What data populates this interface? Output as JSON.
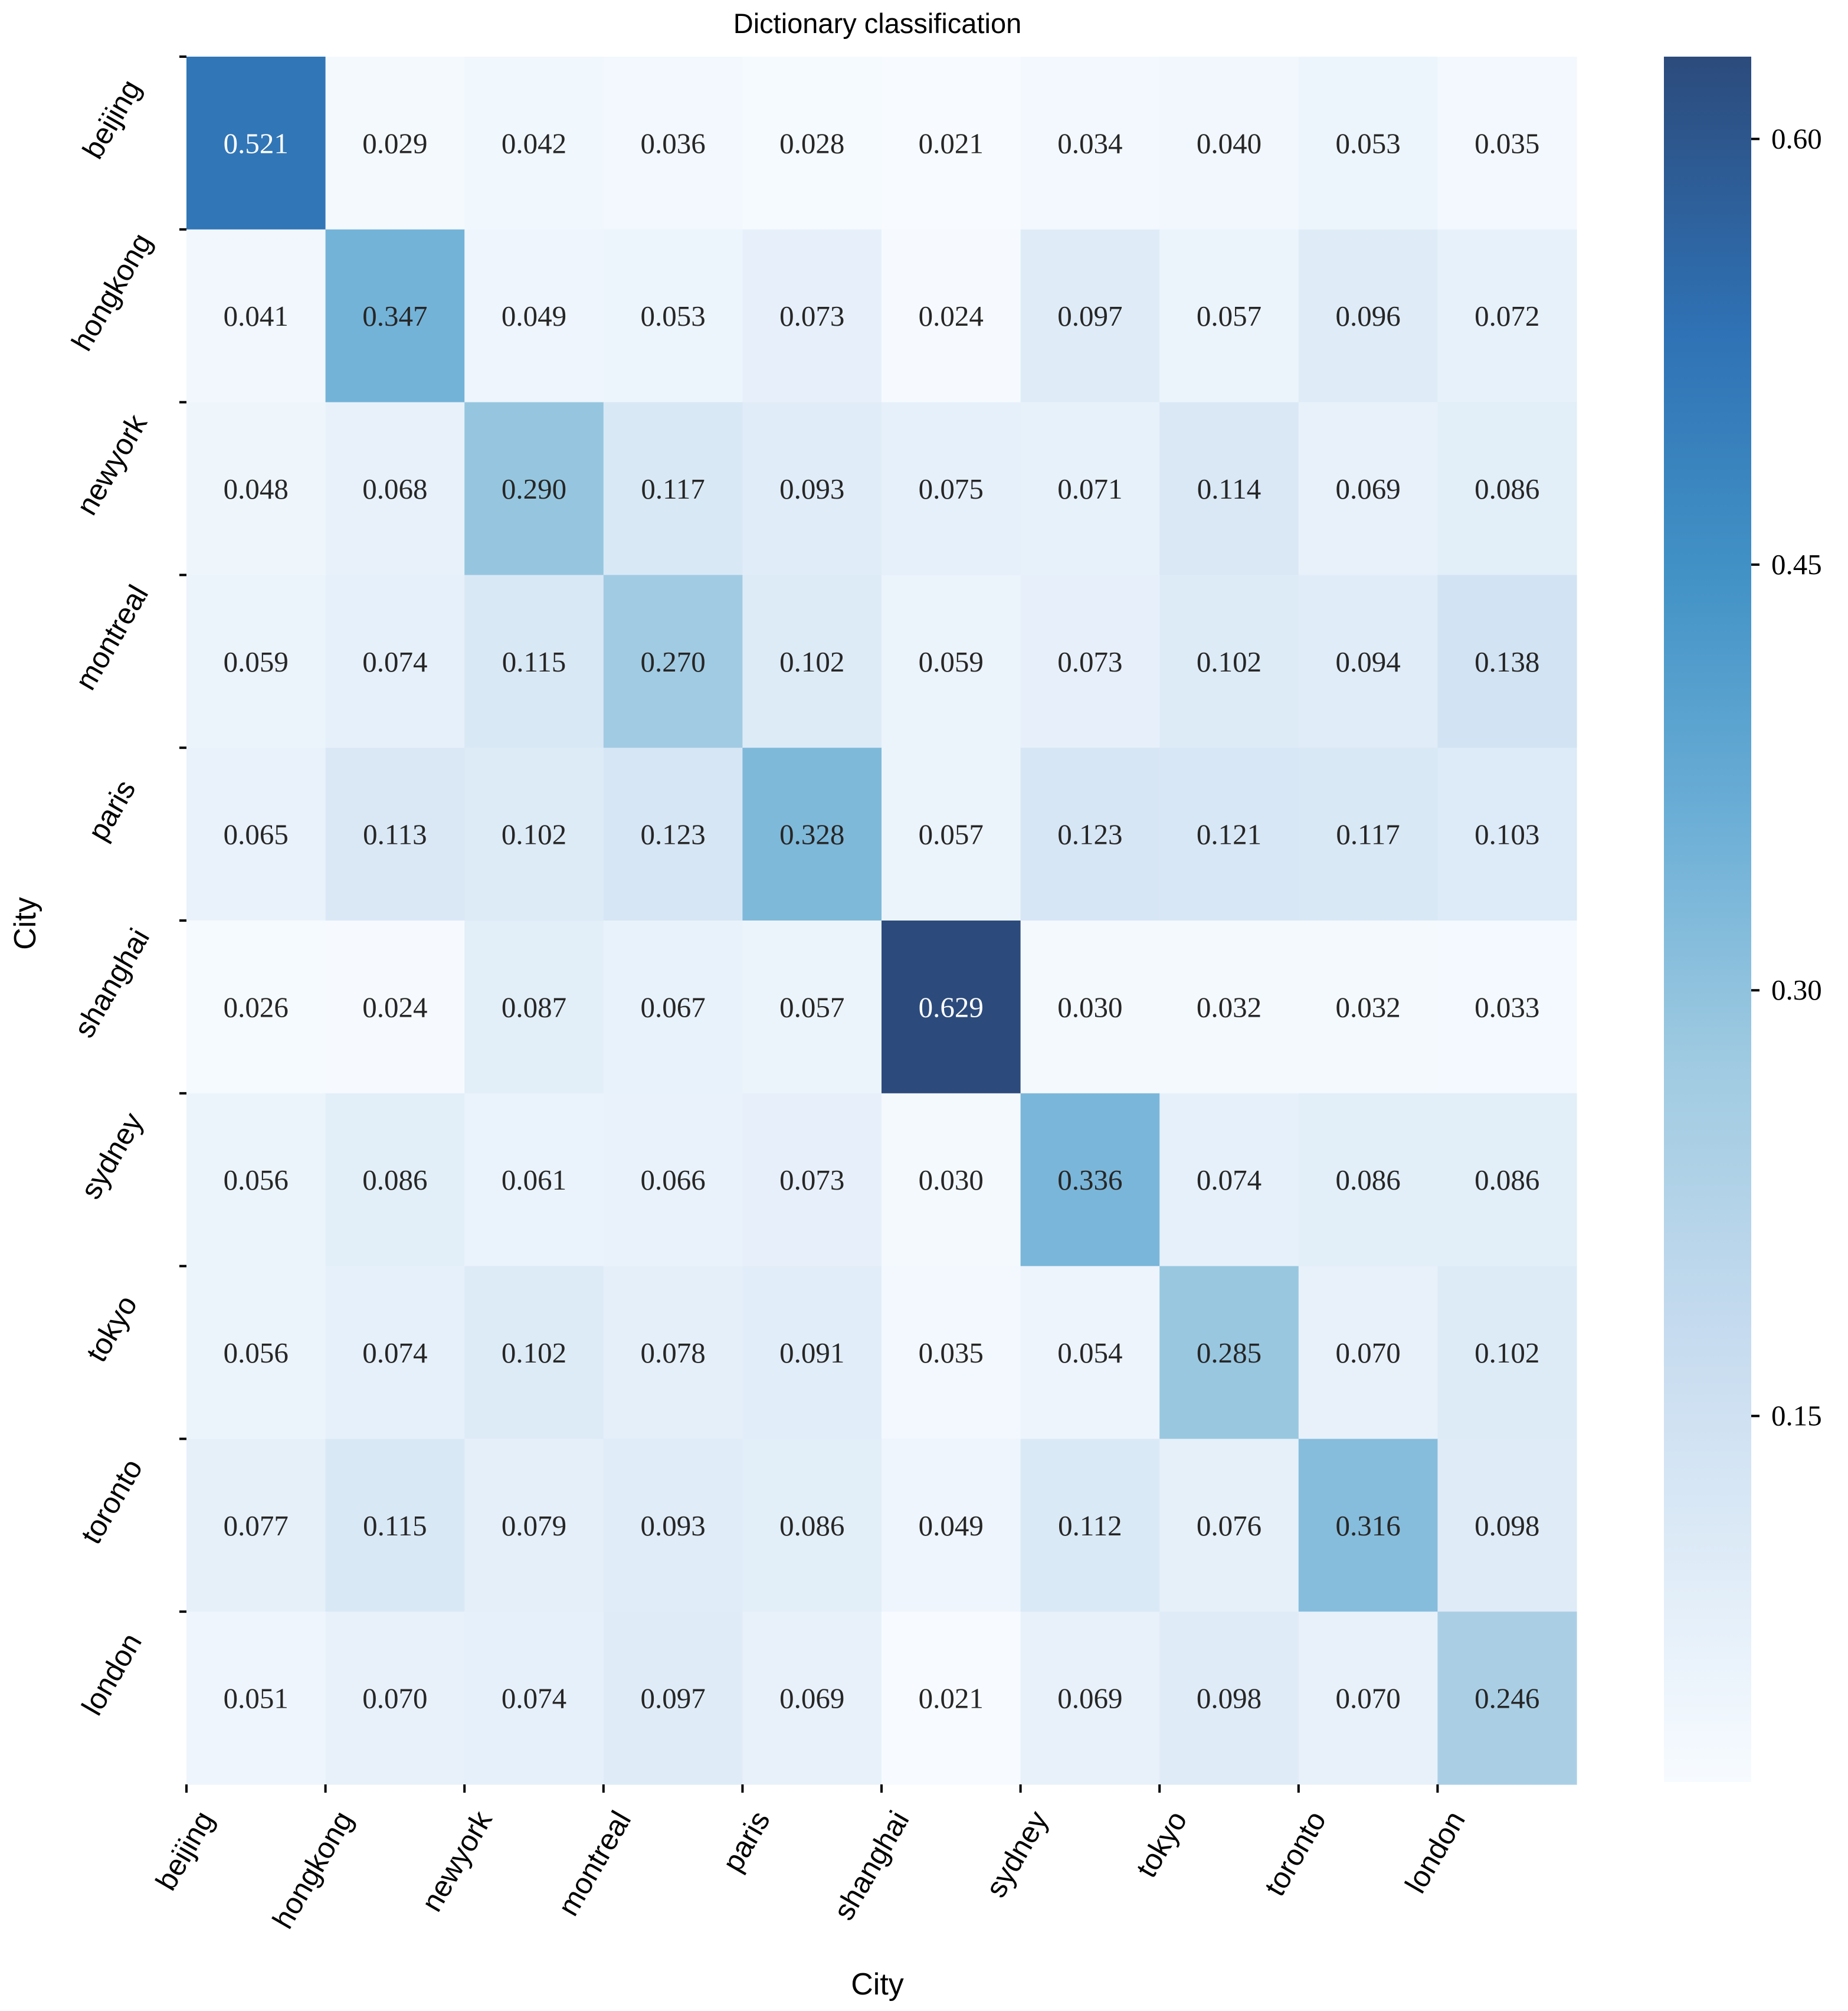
{
  "chart_data": {
    "type": "heatmap",
    "title": "Dictionary classification",
    "xlabel": "City",
    "ylabel": "City",
    "x_categories": [
      "beijing",
      "hongkong",
      "newyork",
      "montreal",
      "paris",
      "shanghai",
      "sydney",
      "tokyo",
      "toronto",
      "london"
    ],
    "y_categories": [
      "beijing",
      "hongkong",
      "newyork",
      "montreal",
      "paris",
      "shanghai",
      "sydney",
      "tokyo",
      "toronto",
      "london"
    ],
    "values": [
      [
        0.521,
        0.029,
        0.042,
        0.036,
        0.028,
        0.021,
        0.034,
        0.04,
        0.053,
        0.035
      ],
      [
        0.041,
        0.347,
        0.049,
        0.053,
        0.073,
        0.024,
        0.097,
        0.057,
        0.096,
        0.072
      ],
      [
        0.048,
        0.068,
        0.29,
        0.117,
        0.093,
        0.075,
        0.071,
        0.114,
        0.069,
        0.086
      ],
      [
        0.059,
        0.074,
        0.115,
        0.27,
        0.102,
        0.059,
        0.073,
        0.102,
        0.094,
        0.138
      ],
      [
        0.065,
        0.113,
        0.102,
        0.123,
        0.328,
        0.057,
        0.123,
        0.121,
        0.117,
        0.103
      ],
      [
        0.026,
        0.024,
        0.087,
        0.067,
        0.057,
        0.629,
        0.03,
        0.032,
        0.032,
        0.033
      ],
      [
        0.056,
        0.086,
        0.061,
        0.066,
        0.073,
        0.03,
        0.336,
        0.074,
        0.086,
        0.086
      ],
      [
        0.056,
        0.074,
        0.102,
        0.078,
        0.091,
        0.035,
        0.054,
        0.285,
        0.07,
        0.102
      ],
      [
        0.077,
        0.115,
        0.079,
        0.093,
        0.086,
        0.049,
        0.112,
        0.076,
        0.316,
        0.098
      ],
      [
        0.051,
        0.07,
        0.074,
        0.097,
        0.069,
        0.021,
        0.069,
        0.098,
        0.07,
        0.246
      ]
    ],
    "value_labels": [
      [
        "0.521",
        "0.029",
        "0.042",
        "0.036",
        "0.028",
        "0.021",
        "0.034",
        "0.040",
        "0.053",
        "0.035"
      ],
      [
        "0.041",
        "0.347",
        "0.049",
        "0.053",
        "0.073",
        "0.024",
        "0.097",
        "0.057",
        "0.096",
        "0.072"
      ],
      [
        "0.048",
        "0.068",
        "0.290",
        "0.117",
        "0.093",
        "0.075",
        "0.071",
        "0.114",
        "0.069",
        "0.086"
      ],
      [
        "0.059",
        "0.074",
        "0.115",
        "0.270",
        "0.102",
        "0.059",
        "0.073",
        "0.102",
        "0.094",
        "0.138"
      ],
      [
        "0.065",
        "0.113",
        "0.102",
        "0.123",
        "0.328",
        "0.057",
        "0.123",
        "0.121",
        "0.117",
        "0.103"
      ],
      [
        "0.026",
        "0.024",
        "0.087",
        "0.067",
        "0.057",
        "0.629",
        "0.030",
        "0.032",
        "0.032",
        "0.033"
      ],
      [
        "0.056",
        "0.086",
        "0.061",
        "0.066",
        "0.073",
        "0.030",
        "0.336",
        "0.074",
        "0.086",
        "0.086"
      ],
      [
        "0.056",
        "0.074",
        "0.102",
        "0.078",
        "0.091",
        "0.035",
        "0.054",
        "0.285",
        "0.070",
        "0.102"
      ],
      [
        "0.077",
        "0.115",
        "0.079",
        "0.093",
        "0.086",
        "0.049",
        "0.112",
        "0.076",
        "0.316",
        "0.098"
      ],
      [
        "0.051",
        "0.070",
        "0.074",
        "0.097",
        "0.069",
        "0.021",
        "0.069",
        "0.098",
        "0.070",
        "0.246"
      ]
    ],
    "colorbar": {
      "vmin": 0.021,
      "vmax": 0.629,
      "ticks": [
        0.15,
        0.3,
        0.45,
        0.6
      ],
      "tick_labels": [
        "0.15",
        "0.30",
        "0.45",
        "0.60"
      ],
      "cmap": "Blues",
      "low_color": "#f7fbff",
      "high_color": "#2c4b7c"
    },
    "grid": false
  }
}
